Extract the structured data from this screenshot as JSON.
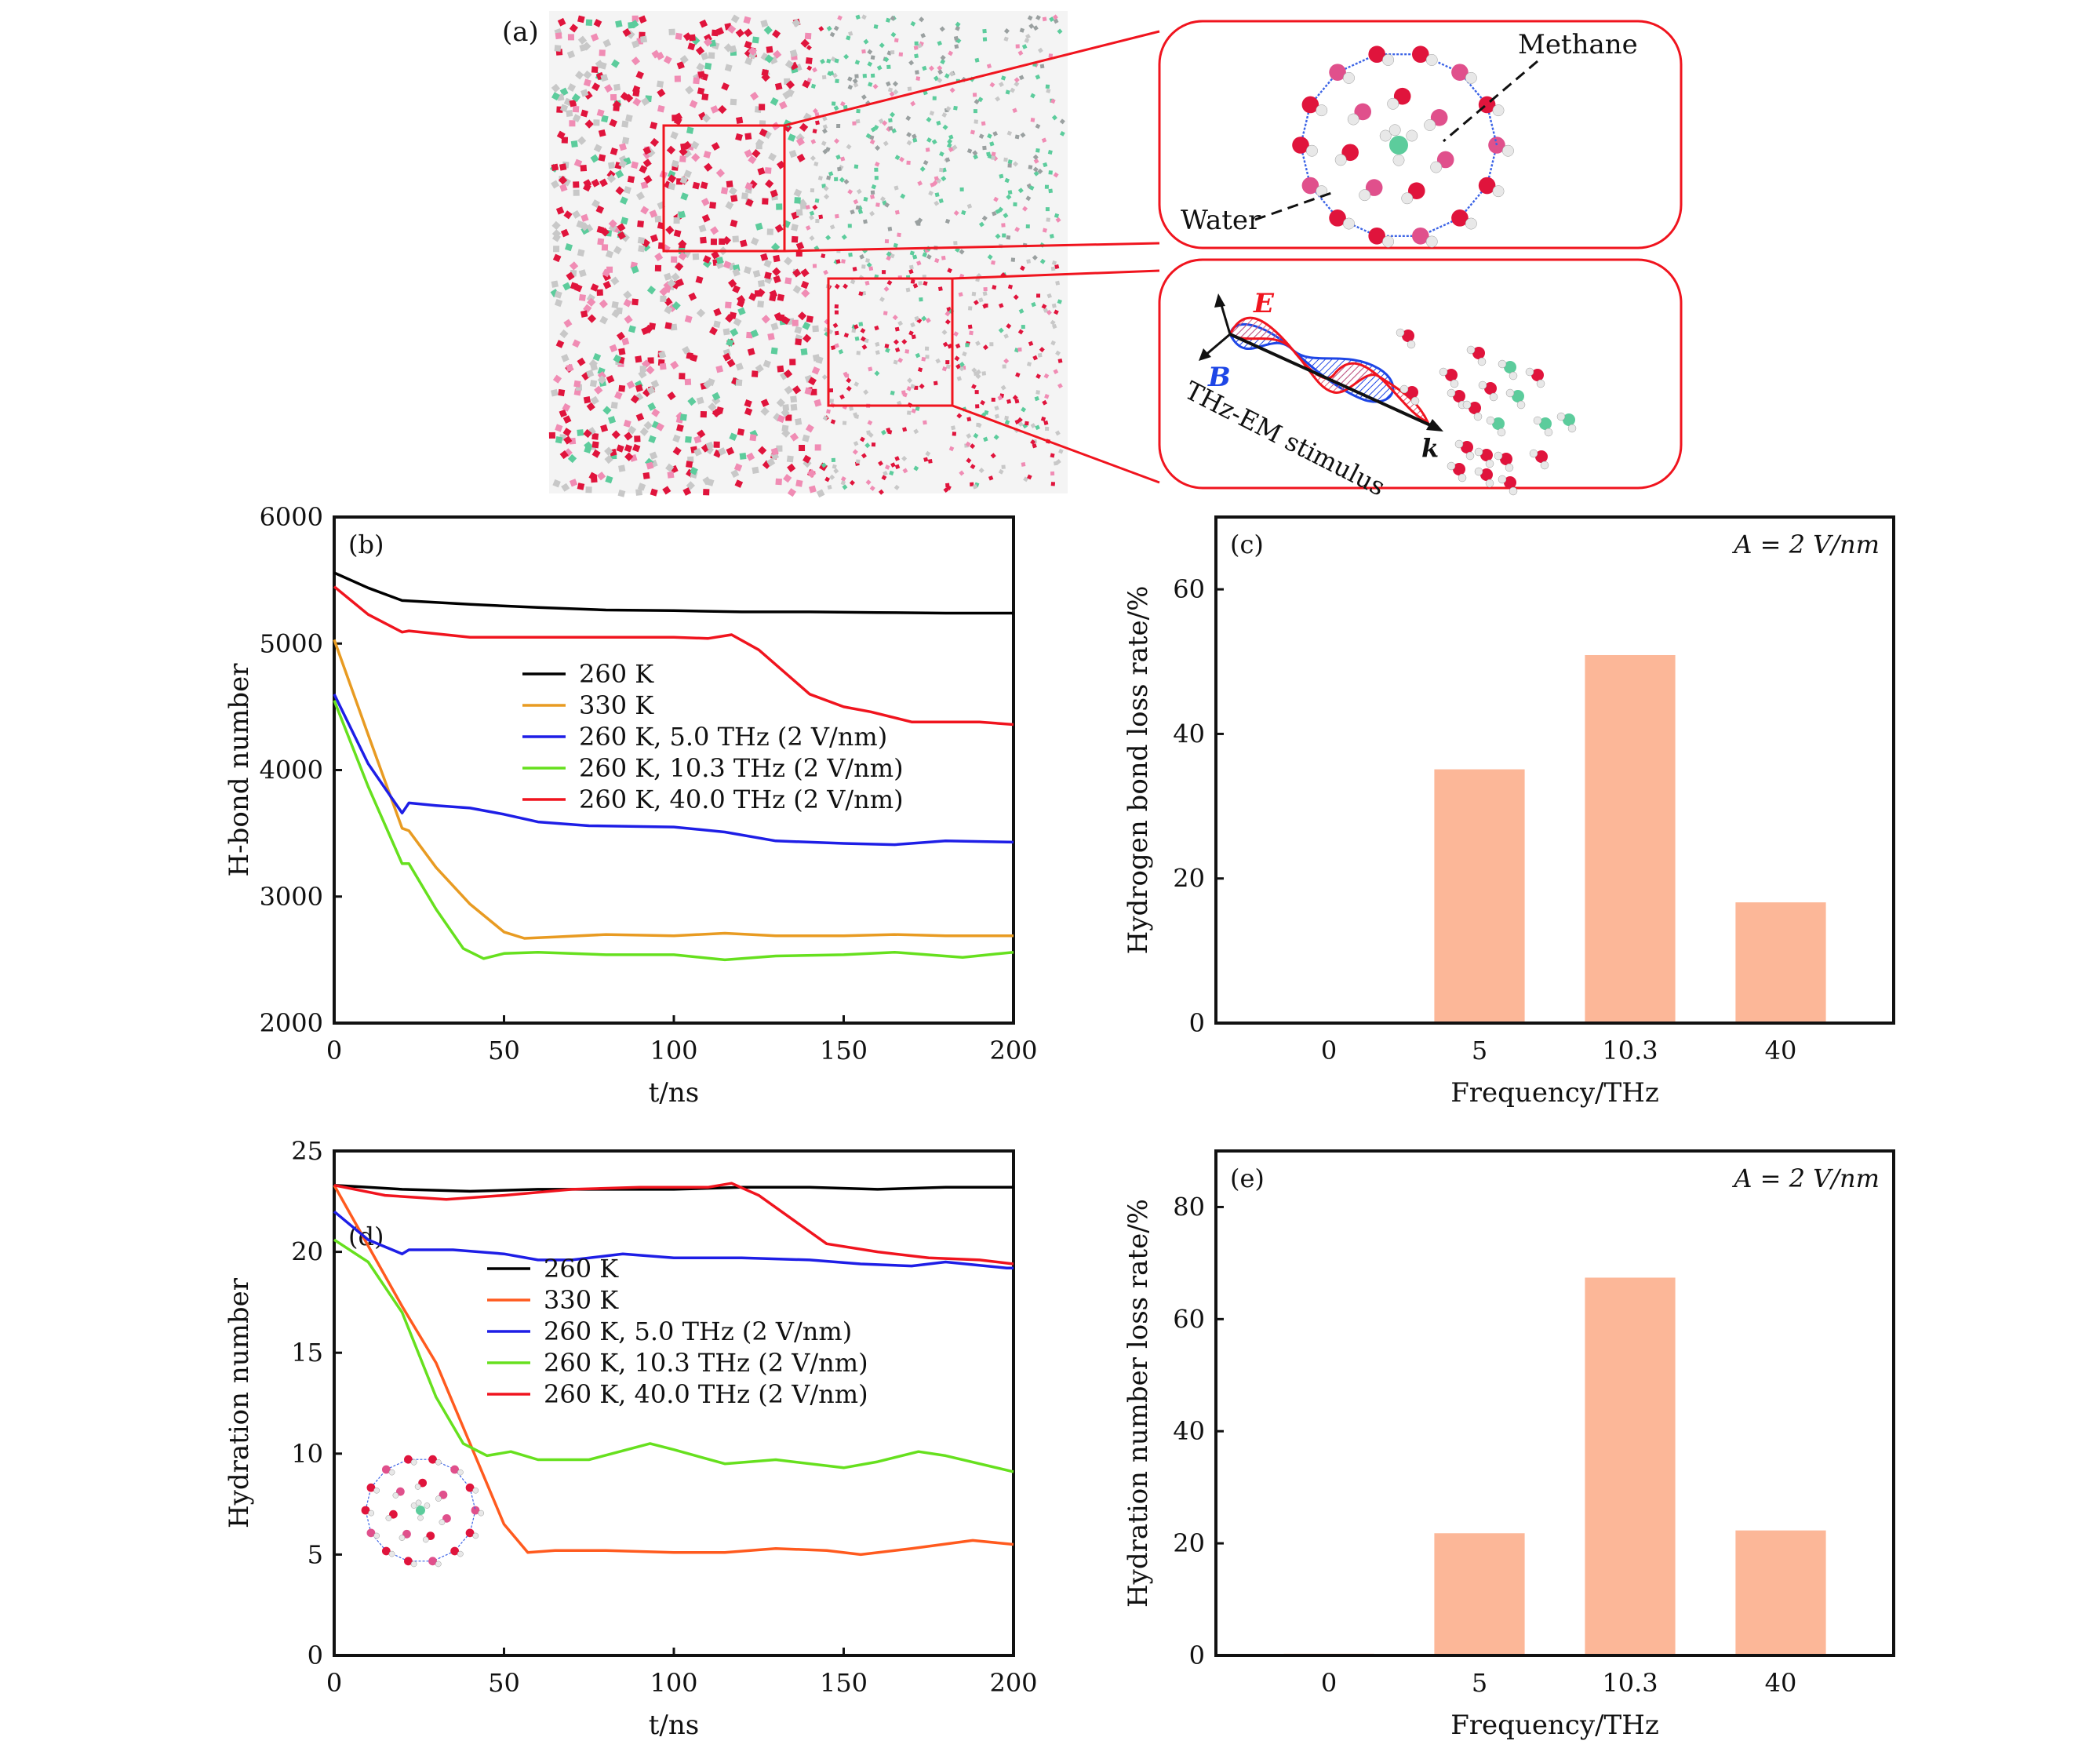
{
  "panel_a": {
    "label": "(a)",
    "callout_top": {
      "methane_label": "Methane",
      "water_label": "Water"
    },
    "callout_bottom": {
      "e_label": "E",
      "b_label": "B",
      "k_label": "k",
      "stimulus_label": "THz-EM stimulus"
    },
    "colors": {
      "oxygen": "#e0143c",
      "hydrogen": "#e8e8e8",
      "carbon": "#5ccc9c",
      "box": "#f0141e",
      "e_wave": "#f0141e",
      "b_wave": "#1e46e6"
    }
  },
  "chart_data": [
    {
      "id": "b",
      "panel_label": "(b)",
      "type": "line",
      "xlabel": "t/ns",
      "ylabel": "H-bond number",
      "xlim": [
        0,
        200
      ],
      "ylim": [
        2000,
        6000
      ],
      "xticks": [
        0,
        50,
        100,
        150,
        200
      ],
      "yticks": [
        2000,
        3000,
        4000,
        5000,
        6000
      ],
      "legend_position": "center",
      "series": [
        {
          "name": "260 K",
          "color": "#000000",
          "x": [
            0,
            10,
            20,
            40,
            60,
            80,
            100,
            120,
            140,
            160,
            180,
            200
          ],
          "y": [
            5560,
            5440,
            5340,
            5310,
            5285,
            5265,
            5260,
            5250,
            5250,
            5245,
            5240,
            5240
          ]
        },
        {
          "name": "330 K",
          "color": "#e89b22",
          "x": [
            0,
            10,
            20,
            22,
            30,
            40,
            50,
            56,
            65,
            80,
            100,
            115,
            130,
            150,
            165,
            180,
            200
          ],
          "y": [
            5030,
            4280,
            3540,
            3520,
            3230,
            2940,
            2720,
            2670,
            2680,
            2700,
            2690,
            2710,
            2690,
            2690,
            2700,
            2690,
            2690
          ]
        },
        {
          "name": "260 K, 5.0 THz (2 V/nm)",
          "color": "#1e1ee6",
          "x": [
            0,
            10,
            20,
            22,
            30,
            40,
            50,
            60,
            75,
            100,
            115,
            130,
            150,
            165,
            180,
            200
          ],
          "y": [
            4600,
            4050,
            3660,
            3740,
            3720,
            3700,
            3650,
            3590,
            3560,
            3550,
            3510,
            3440,
            3420,
            3410,
            3440,
            3430
          ]
        },
        {
          "name": "260 K, 10.3 THz (2 V/nm)",
          "color": "#66e01e",
          "x": [
            0,
            10,
            20,
            22,
            30,
            38,
            44,
            50,
            60,
            80,
            100,
            115,
            130,
            150,
            165,
            185,
            200
          ],
          "y": [
            4550,
            3870,
            3260,
            3260,
            2900,
            2590,
            2510,
            2550,
            2560,
            2540,
            2540,
            2500,
            2530,
            2540,
            2560,
            2520,
            2560
          ]
        },
        {
          "name": "260 K, 40.0 THz (2 V/nm)",
          "color": "#f0141e",
          "x": [
            0,
            10,
            20,
            22,
            40,
            60,
            80,
            100,
            110,
            117,
            125,
            140,
            150,
            158,
            170,
            190,
            200
          ],
          "y": [
            5450,
            5230,
            5090,
            5100,
            5050,
            5050,
            5050,
            5050,
            5040,
            5070,
            4950,
            4600,
            4500,
            4460,
            4380,
            4380,
            4360
          ]
        }
      ]
    },
    {
      "id": "c",
      "panel_label": "(c)",
      "annotation": "A = 2 V/nm",
      "type": "bar",
      "xlabel": "Frequency/THz",
      "ylabel": "Hydrogen bond loss rate/%",
      "categories": [
        "0",
        "5",
        "10.3",
        "40"
      ],
      "values": [
        0.2,
        35.1,
        50.9,
        16.7
      ],
      "ylim": [
        0,
        70
      ],
      "yticks": [
        0,
        20,
        40,
        60
      ],
      "bar_color": "#fcb798"
    },
    {
      "id": "d",
      "panel_label": "(d)",
      "type": "line",
      "xlabel": "t/ns",
      "ylabel": "Hydration number",
      "xlim": [
        0,
        200
      ],
      "ylim": [
        0,
        25
      ],
      "xticks": [
        0,
        50,
        100,
        150,
        200
      ],
      "yticks": [
        0,
        5,
        10,
        15,
        20,
        25
      ],
      "legend_position": "center",
      "series": [
        {
          "name": "260 K",
          "color": "#000000",
          "x": [
            0,
            10,
            20,
            40,
            60,
            80,
            100,
            120,
            140,
            160,
            180,
            200
          ],
          "y": [
            23.3,
            23.2,
            23.1,
            23.0,
            23.1,
            23.1,
            23.1,
            23.2,
            23.2,
            23.1,
            23.2,
            23.2
          ]
        },
        {
          "name": "330 K",
          "color": "#ff5a1e",
          "x": [
            0,
            10,
            20,
            30,
            40,
            50,
            57,
            65,
            80,
            100,
            115,
            130,
            145,
            155,
            170,
            188,
            200
          ],
          "y": [
            23.3,
            20.3,
            17.3,
            14.5,
            10.5,
            6.5,
            5.1,
            5.2,
            5.2,
            5.1,
            5.1,
            5.3,
            5.2,
            5.0,
            5.3,
            5.7,
            5.5
          ]
        },
        {
          "name": "260 K, 5.0 THz (2 V/nm)",
          "color": "#1e1ee6",
          "x": [
            0,
            10,
            20,
            22,
            35,
            50,
            60,
            70,
            85,
            100,
            120,
            140,
            155,
            170,
            180,
            198,
            200
          ],
          "y": [
            22.0,
            20.6,
            19.9,
            20.1,
            20.1,
            19.9,
            19.6,
            19.6,
            19.9,
            19.7,
            19.7,
            19.6,
            19.4,
            19.3,
            19.5,
            19.2,
            19.2
          ]
        },
        {
          "name": "260 K, 10.3 THz (2 V/nm)",
          "color": "#66e01e",
          "x": [
            0,
            10,
            20,
            30,
            38,
            45,
            52,
            60,
            75,
            93,
            100,
            115,
            130,
            150,
            160,
            172,
            180,
            200
          ],
          "y": [
            20.6,
            19.5,
            17.0,
            12.8,
            10.5,
            9.9,
            10.1,
            9.7,
            9.7,
            10.5,
            10.2,
            9.5,
            9.7,
            9.3,
            9.6,
            10.1,
            9.9,
            9.1
          ]
        },
        {
          "name": "260 K, 40.0 THz (2 V/nm)",
          "color": "#f0141e",
          "x": [
            0,
            15,
            33,
            50,
            70,
            90,
            110,
            117,
            125,
            145,
            160,
            175,
            190,
            200
          ],
          "y": [
            23.3,
            22.8,
            22.6,
            22.8,
            23.1,
            23.2,
            23.2,
            23.4,
            22.8,
            20.4,
            20.0,
            19.7,
            19.6,
            19.4
          ]
        }
      ]
    },
    {
      "id": "e",
      "panel_label": "(e)",
      "annotation": "A = 2 V/nm",
      "type": "bar",
      "xlabel": "Frequency/THz",
      "ylabel": "Hydration number loss rate/%",
      "categories": [
        "0",
        "5",
        "10.3",
        "40"
      ],
      "values": [
        0.3,
        21.8,
        67.4,
        22.3
      ],
      "ylim": [
        0,
        90
      ],
      "yticks": [
        0,
        20,
        40,
        60,
        80
      ],
      "bar_color": "#fcb798"
    }
  ]
}
